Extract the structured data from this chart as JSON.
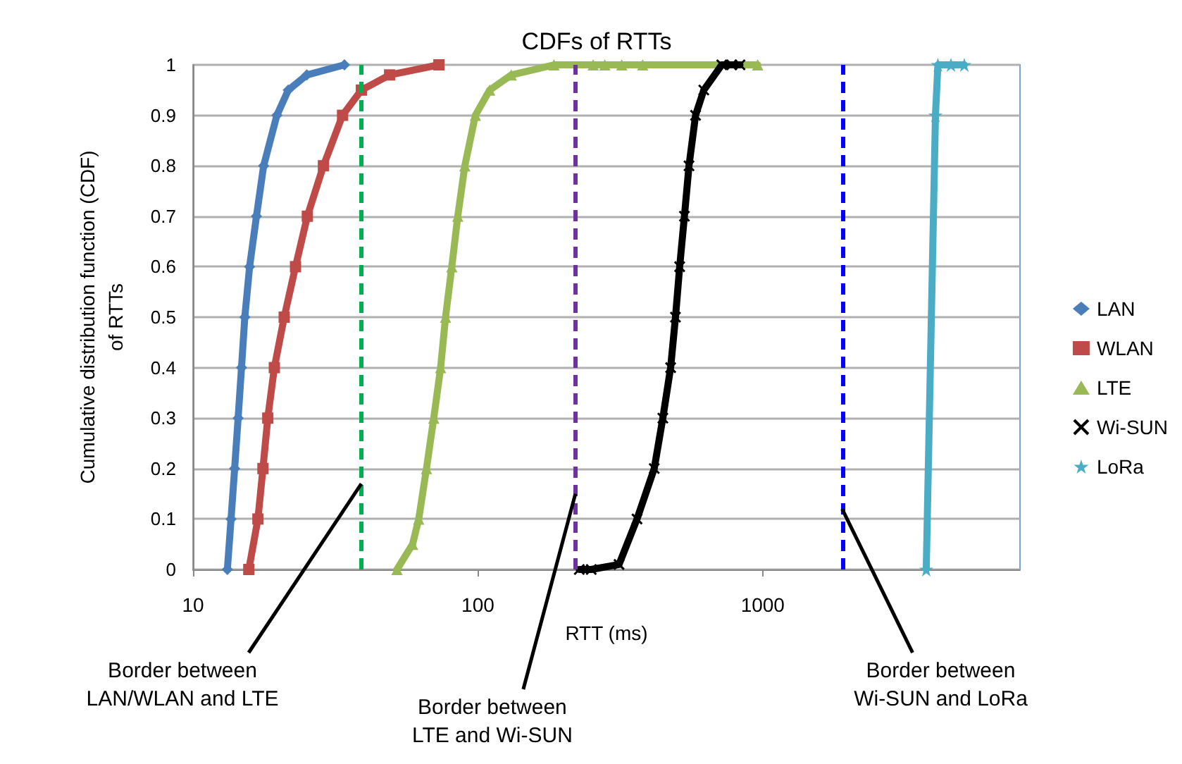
{
  "chart_data": {
    "type": "line",
    "title": "CDFs of RTTs",
    "xlabel": "RTT (ms)",
    "ylabel": "Cumulative distribution function (CDF)\nof RTTs",
    "log": "x",
    "xlim": [
      10,
      8000
    ],
    "xticks": [
      10,
      100,
      1000
    ],
    "ylim": [
      0,
      1
    ],
    "yticks": [
      0,
      0.1,
      0.2,
      0.3,
      0.4,
      0.5,
      0.6,
      0.7,
      0.8,
      0.9,
      1
    ],
    "grid": "y",
    "legend": "right",
    "series": [
      {
        "name": "LAN",
        "color": "#4a7ebb",
        "marker": "diamond",
        "x": [
          13.2,
          13.6,
          14.0,
          14.4,
          14.8,
          15.2,
          15.8,
          16.7,
          17.7,
          19.7,
          21.6,
          25.1,
          34
        ],
        "values": [
          0,
          0.1,
          0.2,
          0.3,
          0.4,
          0.5,
          0.6,
          0.7,
          0.8,
          0.9,
          0.95,
          0.98,
          1
        ]
      },
      {
        "name": "WLAN",
        "color": "#be4b48",
        "marker": "square",
        "x": [
          15.7,
          16.9,
          17.6,
          18.3,
          19.3,
          20.9,
          22.9,
          25.2,
          28.7,
          33.5,
          39,
          49,
          73
        ],
        "values": [
          0,
          0.1,
          0.2,
          0.3,
          0.4,
          0.5,
          0.6,
          0.7,
          0.8,
          0.9,
          0.95,
          0.98,
          1
        ]
      },
      {
        "name": "LTE",
        "color": "#98b954",
        "marker": "triangle",
        "x": [
          52,
          59,
          62,
          66,
          70,
          74,
          77,
          81,
          85,
          90,
          98,
          110,
          131,
          185,
          254,
          279,
          320,
          379,
          960
        ],
        "values": [
          0,
          0.05,
          0.1,
          0.2,
          0.3,
          0.4,
          0.5,
          0.6,
          0.7,
          0.8,
          0.9,
          0.95,
          0.98,
          1,
          1,
          1,
          1,
          1,
          1
        ]
      },
      {
        "name": "Wi-SUN",
        "color": "#000000",
        "marker": "cross",
        "x": [
          227,
          250,
          313,
          362,
          416,
          446,
          475,
          494,
          511,
          531,
          551,
          581,
          621,
          718,
          778,
          832
        ],
        "values": [
          0,
          0,
          0.01,
          0.1,
          0.2,
          0.3,
          0.4,
          0.5,
          0.6,
          0.7,
          0.8,
          0.9,
          0.95,
          1,
          1,
          1
        ]
      },
      {
        "name": "LoRa",
        "color": "#4bacc6",
        "marker": "star",
        "x": [
          3750,
          4040,
          4120,
          4580,
          5100
        ],
        "values": [
          0,
          0.9,
          1,
          1,
          1
        ]
      }
    ],
    "ref_lines": [
      {
        "axis": "x",
        "value": 39,
        "color": "#00b050",
        "line_style": "dashed"
      },
      {
        "axis": "x",
        "value": 220,
        "color": "#7030a0",
        "line_style": "dashed"
      },
      {
        "axis": "x",
        "value": 1900,
        "color": "#0000ff",
        "line_style": "dashed"
      }
    ],
    "annotations": [
      {
        "text": "Border between\nLAN/WLAN and LTE",
        "x": 39,
        "y": 0.17
      },
      {
        "text": "Border between\nLTE and Wi-SUN",
        "x": 220,
        "y": 0.15
      },
      {
        "text": "Border between\nWi-SUN and LoRa",
        "x": 1900,
        "y": 0.12
      }
    ]
  }
}
